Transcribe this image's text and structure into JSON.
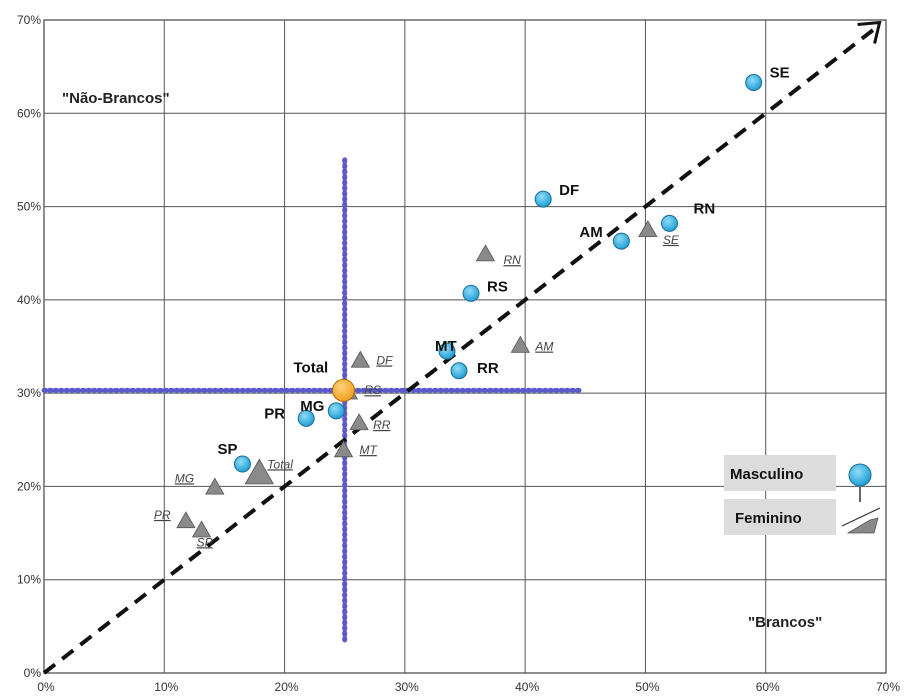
{
  "chart_data": {
    "type": "scatter",
    "xlim": [
      0,
      70
    ],
    "ylim": [
      0,
      70
    ],
    "x_ticks": [
      "0%",
      "10%",
      "20%",
      "30%",
      "40%",
      "50%",
      "60%",
      "70%"
    ],
    "y_ticks": [
      "0%",
      "10%",
      "20%",
      "30%",
      "40%",
      "50%",
      "60%",
      "70%"
    ],
    "grid": true,
    "annotations": {
      "top_left": "\"Não-Brancos\"",
      "bottom_right": "\"Brancos\""
    },
    "reference_lines": {
      "vertical_x": 25,
      "horizontal_y": 30.3
    },
    "legend": {
      "position": "right",
      "entries": [
        "Masculino",
        "Feminino"
      ]
    },
    "series": [
      {
        "name": "Masculino",
        "marker": "circle",
        "color": "#29aee2",
        "points": [
          {
            "label": "SE",
            "x": 59,
            "y": 63.3
          },
          {
            "label": "DF",
            "x": 41.5,
            "y": 50.8
          },
          {
            "label": "RN",
            "x": 52,
            "y": 48.2
          },
          {
            "label": "AM",
            "x": 48,
            "y": 46.3
          },
          {
            "label": "RS",
            "x": 35.5,
            "y": 40.7
          },
          {
            "label": "MT",
            "x": 33.5,
            "y": 34.5
          },
          {
            "label": "RR",
            "x": 34.5,
            "y": 32.4
          },
          {
            "label": "Total",
            "x": 24.9,
            "y": 30.3
          },
          {
            "label": "MG",
            "x": 24.3,
            "y": 28.1
          },
          {
            "label": "PR",
            "x": 21.8,
            "y": 27.3
          },
          {
            "label": "SP",
            "x": 16.5,
            "y": 22.4
          }
        ]
      },
      {
        "name": "Feminino",
        "marker": "triangle",
        "color": "#888888",
        "points": [
          {
            "label": "RN",
            "x": 36.7,
            "y": 44.9
          },
          {
            "label": "SE",
            "x": 50.2,
            "y": 47.5
          },
          {
            "label": "AM",
            "x": 39.6,
            "y": 35.1
          },
          {
            "label": "DF",
            "x": 26.3,
            "y": 33.5
          },
          {
            "label": "RS",
            "x": 25.3,
            "y": 30.1
          },
          {
            "label": "RR",
            "x": 26.2,
            "y": 26.8
          },
          {
            "label": "MT",
            "x": 24.9,
            "y": 23.9
          },
          {
            "label": "Total",
            "x": 17.9,
            "y": 21.4
          },
          {
            "label": "MG",
            "x": 14.2,
            "y": 19.9
          },
          {
            "label": "PR",
            "x": 11.8,
            "y": 16.3
          },
          {
            "label": "SP",
            "x": 13.1,
            "y": 15.3
          }
        ]
      }
    ]
  }
}
